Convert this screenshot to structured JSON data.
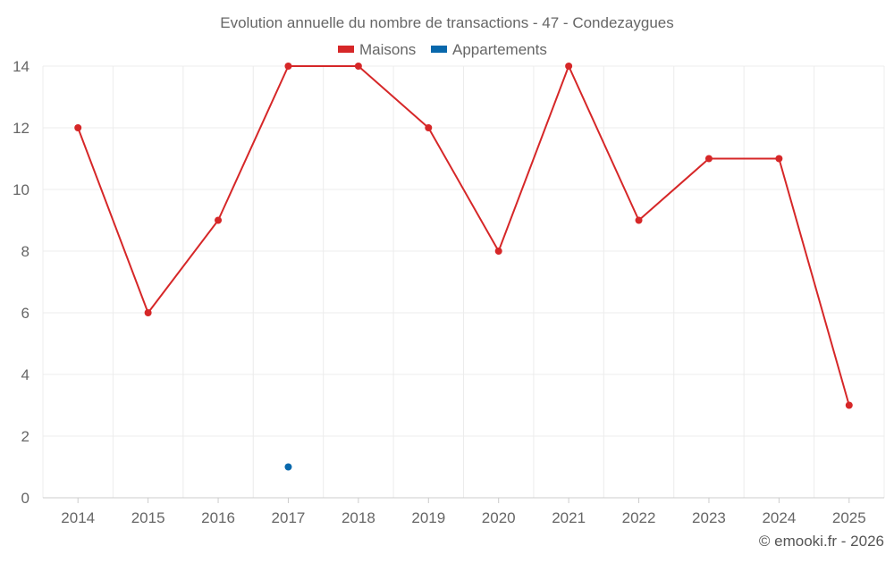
{
  "chart_data": {
    "type": "line",
    "title": "Evolution annuelle du nombre de transactions - 47 - Condezaygues",
    "categories": [
      "2014",
      "2015",
      "2016",
      "2017",
      "2018",
      "2019",
      "2020",
      "2021",
      "2022",
      "2023",
      "2024",
      "2025"
    ],
    "series": [
      {
        "name": "Maisons",
        "color": "#d62728",
        "values": [
          12,
          6,
          9,
          14,
          14,
          12,
          8,
          14,
          9,
          11,
          11,
          3
        ]
      },
      {
        "name": "Appartements",
        "color": "#0868ac",
        "values": [
          null,
          null,
          null,
          1,
          null,
          null,
          null,
          null,
          null,
          null,
          null,
          null
        ]
      }
    ],
    "ylim": [
      0,
      14
    ],
    "yticks": [
      0,
      2,
      4,
      6,
      8,
      10,
      12,
      14
    ],
    "xlabel": "",
    "ylabel": "",
    "grid": true,
    "legend": "top-center"
  },
  "credit": "© emooki.fr - 2026"
}
